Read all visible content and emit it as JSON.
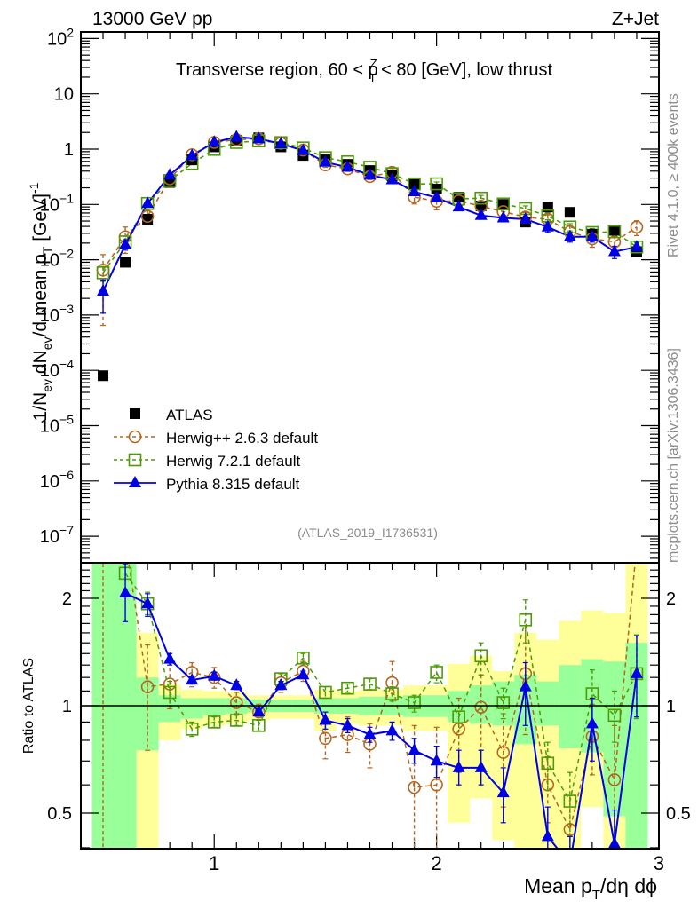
{
  "header": {
    "left": "13000 GeV pp",
    "right": "Z+Jet"
  },
  "side_labels": {
    "rivet": "Rivet 4.1.0, ≥ 400k events",
    "mcplots": "mcplots.cern.ch [arXiv:1306.3436]"
  },
  "chart_data": [
    {
      "type": "scatter",
      "panel": "main",
      "title": "Transverse region, 60 < p_T^Z < 80 [GeV], low thrust",
      "title_parts": {
        "pre": "Transverse region, 60 < p",
        "sup": "Z",
        "sub": "T",
        "post": " < 80 [GeV], low thrust"
      },
      "xlabel": "Mean p_T/dη dϕ",
      "ylabel": "1/N_ev dN_ev/d mean p_T [GeV]^-1",
      "ylabel_parts": {
        "a": "1/N",
        "a_sub": "ev",
        "b": " dN",
        "b_sub": "ev",
        "c": "/d mean p",
        "c_sub": "T",
        "d": " [GeV]",
        "d_sup": "-1"
      },
      "xscale": "linear",
      "yscale": "log",
      "xlim": [
        0.4,
        3.0
      ],
      "ylim": [
        3e-08,
        150
      ],
      "x_ticks": [
        "1",
        "2",
        "3"
      ],
      "y_ticks": [
        "10^-7",
        "10^-6",
        "10^-5",
        "10^-4",
        "10^-3",
        "10^-2",
        "10^-1",
        "1",
        "10",
        "10^2"
      ],
      "y_tick_labels": [
        {
          "base": "10",
          "exp": "−7",
          "v": 1e-07
        },
        {
          "base": "10",
          "exp": "−6",
          "v": 1e-06
        },
        {
          "base": "10",
          "exp": "−5",
          "v": 1e-05
        },
        {
          "base": "10",
          "exp": "−4",
          "v": 0.0001
        },
        {
          "base": "10",
          "exp": "−3",
          "v": 0.001
        },
        {
          "base": "10",
          "exp": "−2",
          "v": 0.01
        },
        {
          "base": "10",
          "exp": "−1",
          "v": 0.1
        },
        {
          "base": "1",
          "exp": "",
          "v": 1
        },
        {
          "base": "10",
          "exp": "",
          "v": 10
        },
        {
          "base": "10",
          "exp": "2",
          "v": 100
        }
      ],
      "x": [
        0.5,
        0.6,
        0.7,
        0.8,
        0.9,
        1.0,
        1.1,
        1.2,
        1.3,
        1.4,
        1.5,
        1.6,
        1.7,
        1.8,
        1.9,
        2.0,
        2.1,
        2.2,
        2.3,
        2.4,
        2.5,
        2.6,
        2.7,
        2.8,
        2.9
      ],
      "series": [
        {
          "name": "ATLAS",
          "label": "ATLAS",
          "color": "#000000",
          "marker": "square-filled",
          "line": "none",
          "values": [
            8e-05,
            0.009,
            0.054,
            0.25,
            0.64,
            1.1,
            1.45,
            1.6,
            1.1,
            0.77,
            0.64,
            0.53,
            0.41,
            0.33,
            0.23,
            0.19,
            0.135,
            0.094,
            0.1,
            0.048,
            0.09,
            0.072,
            0.029,
            0.034,
            0.014
          ]
        },
        {
          "name": "Herwig++ 2.6.3 default",
          "label": "Herwig++ 2.6.3 default",
          "color": "#b5651d",
          "marker": "circle-open",
          "line": "dashed",
          "values": [
            0.0065,
            0.026,
            0.061,
            0.29,
            0.79,
            1.32,
            1.48,
            1.54,
            1.28,
            0.96,
            0.52,
            0.44,
            0.32,
            0.38,
            0.136,
            0.114,
            0.116,
            0.093,
            0.074,
            0.059,
            0.054,
            0.032,
            0.024,
            0.021,
            0.039
          ],
          "err_rel": [
            0.9,
            0.5,
            0.25,
            0.1,
            0.08,
            0.06,
            0.06,
            0.06,
            0.06,
            0.07,
            0.1,
            0.1,
            0.12,
            0.12,
            0.25,
            0.3,
            0.2,
            0.2,
            0.25,
            0.2,
            0.2,
            0.3,
            0.3,
            0.3,
            0.3
          ]
        },
        {
          "name": "Herwig 7.2.1 default",
          "label": "Herwig 7.2.1 default",
          "color": "#4e9a06",
          "marker": "square-open",
          "line": "dashed",
          "values": [
            0.0058,
            0.021,
            0.104,
            0.27,
            0.55,
            0.99,
            1.32,
            1.41,
            1.31,
            1.05,
            0.7,
            0.59,
            0.47,
            0.36,
            0.235,
            0.236,
            0.126,
            0.13,
            0.102,
            0.084,
            0.062,
            0.039,
            0.031,
            0.032,
            0.017
          ],
          "err_rel": [
            0.3,
            0.12,
            0.06,
            0.05,
            0.05,
            0.04,
            0.04,
            0.04,
            0.04,
            0.04,
            0.05,
            0.05,
            0.05,
            0.06,
            0.07,
            0.08,
            0.1,
            0.12,
            0.12,
            0.12,
            0.15,
            0.15,
            0.18,
            0.2,
            0.2
          ]
        },
        {
          "name": "Pythia 8.315 default",
          "label": "Pythia 8.315 default",
          "color": "#0000e6",
          "marker": "triangle-filled",
          "line": "solid",
          "values": [
            0.0027,
            0.0186,
            0.104,
            0.34,
            0.76,
            1.33,
            1.65,
            1.54,
            1.25,
            0.94,
            0.58,
            0.47,
            0.34,
            0.28,
            0.17,
            0.133,
            0.09,
            0.063,
            0.057,
            0.054,
            0.039,
            0.026,
            0.026,
            0.014,
            0.017
          ],
          "err_rel": [
            0.6,
            0.2,
            0.08,
            0.05,
            0.04,
            0.03,
            0.03,
            0.03,
            0.03,
            0.04,
            0.05,
            0.05,
            0.06,
            0.06,
            0.08,
            0.09,
            0.1,
            0.1,
            0.12,
            0.14,
            0.2,
            0.2,
            0.2,
            0.25,
            0.25
          ]
        }
      ],
      "legend": {
        "placement": "center-left"
      },
      "annotation": "(ATLAS_2019_I1736531)"
    },
    {
      "type": "line",
      "panel": "ratio",
      "ylabel": "Ratio to ATLAS",
      "xscale": "linear",
      "yscale": "log",
      "xlim": [
        0.4,
        3.0
      ],
      "ylim": [
        0.4,
        2.5
      ],
      "y_ticks": [
        0.5,
        1,
        2
      ],
      "y_tick_labels": [
        "0.5",
        "1",
        "2"
      ],
      "x_ticks": [
        1,
        2,
        3
      ],
      "x_tick_labels": [
        "1",
        "2",
        "3"
      ],
      "reference_line": 1,
      "x": [
        0.5,
        0.6,
        0.7,
        0.8,
        0.9,
        1.0,
        1.1,
        1.2,
        1.3,
        1.4,
        1.5,
        1.6,
        1.7,
        1.8,
        1.9,
        2.0,
        2.1,
        2.2,
        2.3,
        2.4,
        2.5,
        2.6,
        2.7,
        2.8,
        2.9
      ],
      "bands": {
        "stat": {
          "color": "#99ff99",
          "lo": [
            0.35,
            0.35,
            0.75,
            0.9,
            0.92,
            0.94,
            0.95,
            0.96,
            0.96,
            0.96,
            0.95,
            0.95,
            0.94,
            0.94,
            0.93,
            0.93,
            0.9,
            0.89,
            0.88,
            0.78,
            0.88,
            0.76,
            0.74,
            0.49,
            0.35
          ],
          "hi": [
            2.6,
            2.6,
            1.2,
            1.07,
            1.05,
            1.05,
            1.05,
            1.04,
            1.04,
            1.04,
            1.05,
            1.05,
            1.06,
            1.06,
            1.07,
            1.07,
            1.1,
            1.14,
            1.17,
            1.22,
            1.17,
            1.3,
            1.35,
            1.33,
            1.5
          ]
        },
        "total": {
          "color": "#ffff99",
          "lo": [
            0.35,
            0.35,
            0.35,
            0.8,
            0.86,
            0.88,
            0.89,
            0.91,
            0.92,
            0.92,
            0.85,
            0.89,
            0.88,
            0.88,
            0.85,
            0.85,
            0.47,
            0.55,
            0.42,
            0.35,
            0.35,
            0.35,
            0.52,
            0.35,
            0.35
          ],
          "hi": [
            2.6,
            1.89,
            1.6,
            1.15,
            1.11,
            1.1,
            1.09,
            1.07,
            1.07,
            1.07,
            1.11,
            1.1,
            1.11,
            1.11,
            1.14,
            1.14,
            1.31,
            1.38,
            1.25,
            1.6,
            1.53,
            1.73,
            1.85,
            1.82,
            2.6
          ]
        }
      },
      "series": [
        {
          "name": "Herwig++ 2.6.3 default",
          "color": "#b5651d",
          "marker": "circle-open",
          "line": "dashed",
          "values": [
            null,
            2.9,
            1.13,
            1.15,
            1.24,
            1.2,
            1.02,
            0.96,
            1.16,
            1.25,
            0.81,
            0.83,
            0.78,
            1.16,
            0.59,
            0.6,
            0.86,
            0.99,
            0.74,
            1.23,
            0.6,
            0.45,
            0.82,
            0.62,
            2.8
          ],
          "err_lo": [
            null,
            null,
            0.75,
            0.98,
            1.13,
            1.12,
            0.95,
            0.93,
            1.09,
            1.17,
            0.71,
            0.74,
            0.67,
            1.0,
            0.38,
            0.38,
            0.65,
            0.75,
            0.52,
            0.83,
            0.47,
            0.38,
            0.64,
            0.4,
            null
          ],
          "err_hi": [
            null,
            null,
            1.48,
            1.33,
            1.32,
            1.28,
            1.09,
            1.01,
            1.23,
            1.33,
            0.91,
            0.93,
            0.89,
            1.33,
            0.88,
            0.87,
            1.05,
            1.22,
            0.95,
            1.65,
            0.72,
            0.56,
            1.01,
            0.88,
            null
          ]
        },
        {
          "name": "Herwig 7.2.1 default",
          "color": "#4e9a06",
          "marker": "square-open",
          "line": "dashed",
          "values": [
            null,
            2.35,
            1.93,
            1.09,
            0.86,
            0.9,
            0.91,
            0.88,
            1.19,
            1.36,
            1.09,
            1.12,
            1.15,
            1.08,
            1.02,
            1.24,
            0.93,
            1.38,
            1.02,
            1.74,
            0.69,
            0.54,
            1.08,
            0.94,
            1.23
          ],
          "err_lo": [
            null,
            null,
            1.8,
            1.0,
            0.82,
            0.87,
            0.88,
            0.85,
            1.15,
            1.32,
            1.05,
            1.09,
            1.11,
            1.03,
            0.96,
            1.16,
            0.85,
            1.22,
            0.92,
            1.5,
            0.58,
            0.43,
            0.9,
            0.79,
            0.92
          ],
          "err_hi": [
            null,
            null,
            2.08,
            1.17,
            0.9,
            0.93,
            0.94,
            0.91,
            1.23,
            1.4,
            1.13,
            1.15,
            1.19,
            1.13,
            1.07,
            1.3,
            1.0,
            1.5,
            1.12,
            1.98,
            0.79,
            0.65,
            1.26,
            1.1,
            1.58
          ]
        },
        {
          "name": "Pythia 8.315 default",
          "color": "#0000e6",
          "marker": "triangle-filled",
          "line": "solid",
          "values": [
            null,
            2.07,
            1.93,
            1.35,
            1.18,
            1.21,
            1.14,
            0.96,
            1.14,
            1.22,
            0.91,
            0.88,
            0.83,
            0.85,
            0.75,
            0.7,
            0.67,
            0.67,
            0.57,
            1.13,
            0.43,
            0.36,
            0.89,
            0.41,
            1.23
          ],
          "err_lo": [
            null,
            1.72,
            1.78,
            1.3,
            1.15,
            1.18,
            1.11,
            0.94,
            1.11,
            1.19,
            0.86,
            0.84,
            0.79,
            0.8,
            0.69,
            0.63,
            0.6,
            0.6,
            0.47,
            0.88,
            0.34,
            0.3,
            0.7,
            0.32,
            0.93
          ],
          "err_hi": [
            null,
            2.5,
            2.06,
            1.4,
            1.21,
            1.24,
            1.17,
            0.98,
            1.17,
            1.25,
            0.96,
            0.92,
            0.87,
            0.9,
            0.81,
            0.77,
            0.75,
            0.75,
            0.67,
            1.32,
            0.52,
            0.43,
            1.05,
            0.51,
            1.57
          ]
        }
      ]
    }
  ]
}
